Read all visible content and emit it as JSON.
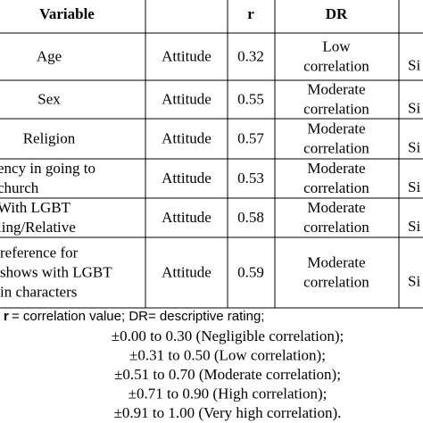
{
  "table": {
    "header": {
      "variable": "Variable",
      "r": "r",
      "dr": "DR"
    },
    "rows": [
      {
        "variable": [
          "Age"
        ],
        "with": "Attitude",
        "r": 0.32,
        "dr": [
          "Low",
          "correlation"
        ],
        "remark": "Si"
      },
      {
        "variable": [
          "Sex"
        ],
        "with": "Attitude",
        "r": 0.55,
        "dr": [
          "Moderate",
          "correlation"
        ],
        "remark": "Si"
      },
      {
        "variable": [
          "Religion"
        ],
        "with": "Attitude",
        "r": 0.57,
        "dr": [
          "Moderate",
          "correlation"
        ],
        "remark": "Si"
      },
      {
        "variable": [
          "ency in going to",
          "church"
        ],
        "with": "Attitude",
        "r": 0.53,
        "dr": [
          "Moderate",
          "correlation"
        ],
        "remark": "Si"
      },
      {
        "variable": [
          "With LGBT",
          "ling/Relative"
        ],
        "with": "Attitude",
        "r": 0.58,
        "dr": [
          "Moderate",
          "correlation"
        ],
        "remark": "Si"
      },
      {
        "variable": [
          "reference for",
          "shows with LGBT",
          "in characters"
        ],
        "with": "Attitude",
        "r": 0.59,
        "dr": [
          "Moderate",
          "correlation"
        ],
        "remark": "Si"
      }
    ]
  },
  "notes": {
    "legend_symbol": "r",
    "legend_text": "= correlation value;  DR= descriptive rating;",
    "scale": [
      "±0.00 to 0.30 (Negligible correlation);",
      "±0.31 to 0.50 (Low correlation);",
      "±0.51 to 0.70 (Moderate correlation);",
      "±0.71 to 0.90 (High correlation);",
      "±0.91 to 1.00 (Very high correlation)."
    ]
  }
}
